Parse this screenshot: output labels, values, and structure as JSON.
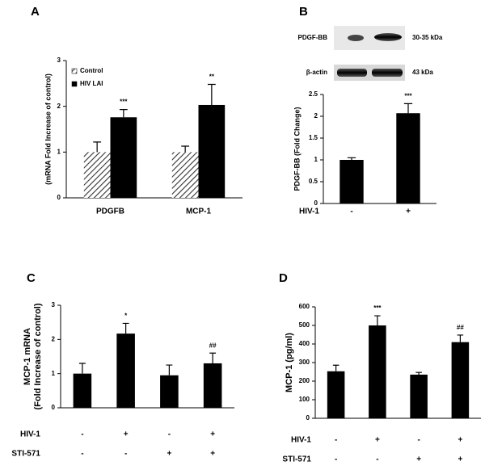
{
  "chart_data": [
    {
      "type": "bar",
      "panel": "A",
      "ylabel": "(mRNA Fold Increase of control)",
      "categories": [
        "PDGFB",
        "MCP-1"
      ],
      "series": [
        {
          "name": "Control",
          "color": "#ffffff",
          "hatch": true,
          "values": [
            1,
            1
          ],
          "errors": [
            0.22,
            0.13
          ],
          "annotations": [
            null,
            null
          ]
        },
        {
          "name": "HIV LAI",
          "color": "#000000",
          "hatch": false,
          "values": [
            1.76,
            2.03
          ],
          "errors": [
            0.17,
            0.45
          ],
          "annotations": [
            "***",
            "**"
          ]
        }
      ],
      "ylim": [
        0,
        3
      ],
      "yticks": [
        0,
        1,
        2,
        3
      ],
      "legend": "upper left"
    },
    {
      "type": "bar",
      "panel": "B",
      "ylabel": "PDGF-BB (Fold Change)",
      "blot": [
        {
          "label": "PDGF-BB",
          "size": "30-35 kDa"
        },
        {
          "label": "β-actin",
          "size": "43 kDa"
        }
      ],
      "values": [
        1,
        2.07
      ],
      "errors": [
        0.05,
        0.22
      ],
      "annotations": [
        null,
        "***"
      ],
      "color": "#000000",
      "conditions": [
        {
          "name": "HIV-1",
          "values": [
            "-",
            "+"
          ]
        }
      ],
      "ylim": [
        0,
        2.5
      ],
      "yticks": [
        0,
        0.5,
        1,
        1.5,
        2,
        2.5
      ]
    },
    {
      "type": "bar",
      "panel": "C",
      "ylabel": [
        "MCP-1 mRNA",
        "(Fold Increase of control)"
      ],
      "values": [
        1,
        2.17,
        0.95,
        1.3
      ],
      "errors": [
        0.3,
        0.3,
        0.3,
        0.3
      ],
      "annotations": [
        null,
        "*",
        null,
        "##"
      ],
      "color": "#000000",
      "conditions": [
        {
          "name": "HIV-1",
          "values": [
            "-",
            "+",
            "-",
            "+"
          ]
        },
        {
          "name": "STI-571",
          "values": [
            "-",
            "-",
            "+",
            "+"
          ]
        }
      ],
      "ylim": [
        0,
        3
      ],
      "yticks": [
        0,
        1,
        2,
        3
      ]
    },
    {
      "type": "bar",
      "panel": "D",
      "ylabel": "MCP-1 (pg/ml)",
      "values": [
        253,
        500,
        235,
        410
      ],
      "errors": [
        33,
        52,
        12,
        38
      ],
      "annotations": [
        null,
        "***",
        null,
        "##"
      ],
      "color": "#000000",
      "conditions": [
        {
          "name": "HIV-1",
          "values": [
            "-",
            "+",
            "-",
            "+"
          ]
        },
        {
          "name": "STI-571",
          "values": [
            "-",
            "-",
            "+",
            "+"
          ]
        }
      ],
      "ylim": [
        0,
        600
      ],
      "yticks": [
        0,
        100,
        200,
        300,
        400,
        500,
        600
      ]
    }
  ]
}
